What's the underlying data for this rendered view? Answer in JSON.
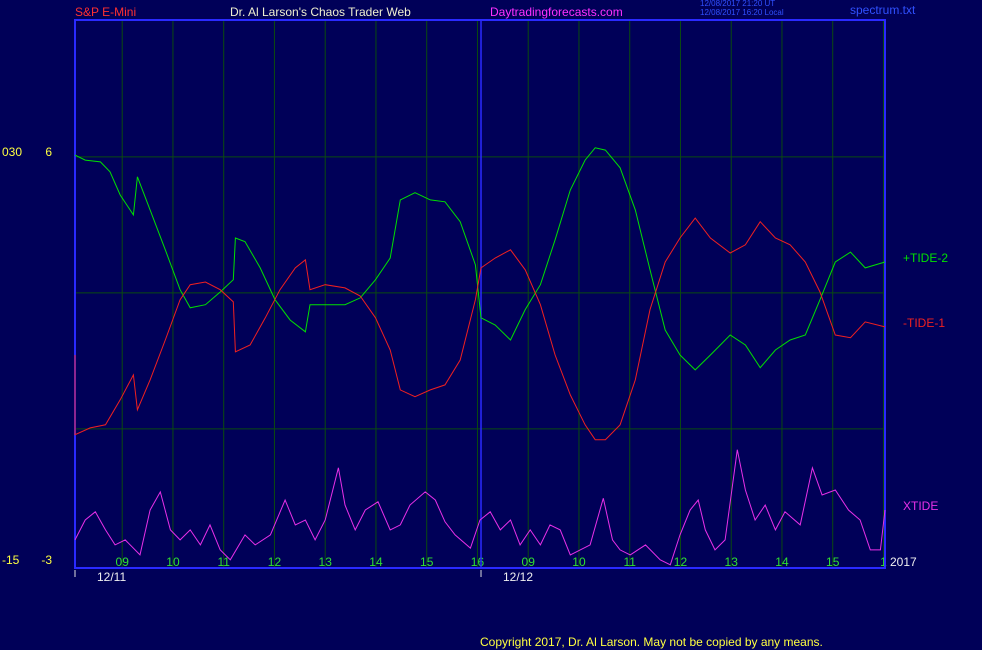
{
  "chart_data": {
    "type": "line",
    "instrument": "S&P E-Mini",
    "title": "Dr. Al Larson's Chaos Trader Web",
    "website": "Daytradingforecasts.com",
    "timestamps": [
      "12/08/2017 21:20 UT",
      "12/08/2017 16:20 Local"
    ],
    "file": "spectrum.txt",
    "year": "2017",
    "copyright": "Copyright 2017, Dr. Al Larson. May not be copied by any means.",
    "xlim": [
      -0.93,
      15.03
    ],
    "xticks": [
      {
        "value": 0,
        "label": "09"
      },
      {
        "value": 1,
        "label": "10"
      },
      {
        "value": 2,
        "label": "11"
      },
      {
        "value": 3,
        "label": "12"
      },
      {
        "value": 4,
        "label": "13"
      },
      {
        "value": 5,
        "label": "14"
      },
      {
        "value": 6,
        "label": "15"
      },
      {
        "value": 7,
        "label": "16"
      },
      {
        "value": 8,
        "label": "09"
      },
      {
        "value": 9,
        "label": "10"
      },
      {
        "value": 10,
        "label": "11"
      },
      {
        "value": 11,
        "label": "12"
      },
      {
        "value": 12,
        "label": "13"
      },
      {
        "value": 13,
        "label": "14"
      },
      {
        "value": 14,
        "label": "15"
      },
      {
        "value": 15,
        "label": "1"
      }
    ],
    "dates": [
      {
        "value": -0.93,
        "label": "12/11"
      },
      {
        "value": 7.07,
        "label": "12/12"
      }
    ],
    "ylim": [
      -3.07,
      9.02
    ],
    "yticks": [
      -3,
      6
    ],
    "y2lim": [
      -15.33,
      45.11
    ],
    "y2ticks": [
      -15,
      {
        "value": 30,
        "label": "030"
      }
    ],
    "grid_y": [
      0,
      3,
      6
    ],
    "grid": true,
    "series": [
      {
        "name": "+TIDE-2",
        "color": "#00e000",
        "x": [
          -0.93,
          -0.73,
          -0.43,
          -0.24,
          -0.04,
          0.22,
          0.3,
          0.55,
          0.85,
          1.14,
          1.34,
          1.64,
          1.93,
          2.19,
          2.23,
          2.42,
          2.72,
          3.01,
          3.31,
          3.61,
          3.7,
          4.0,
          4.39,
          4.69,
          4.99,
          5.28,
          5.48,
          5.77,
          6.07,
          6.36,
          6.66,
          6.96,
          7.07,
          7.35,
          7.65,
          7.94,
          8.24,
          8.53,
          8.83,
          9.12,
          9.32,
          9.52,
          9.81,
          10.11,
          10.4,
          10.7,
          10.99,
          11.29,
          11.59,
          11.98,
          12.28,
          12.57,
          12.87,
          13.16,
          13.46,
          13.75,
          14.05,
          14.35,
          14.64,
          15.03
        ],
        "values": [
          6.04,
          5.93,
          5.89,
          5.67,
          5.16,
          4.72,
          5.56,
          4.83,
          3.95,
          3.07,
          2.67,
          2.74,
          3.02,
          3.29,
          4.21,
          4.13,
          3.55,
          2.85,
          2.4,
          2.14,
          2.74,
          2.74,
          2.74,
          2.89,
          3.29,
          3.77,
          5.05,
          5.21,
          5.05,
          5.01,
          4.57,
          3.62,
          2.45,
          2.29,
          1.96,
          2.63,
          3.18,
          4.17,
          5.27,
          5.93,
          6.2,
          6.15,
          5.76,
          4.83,
          3.51,
          2.18,
          1.63,
          1.3,
          1.63,
          2.07,
          1.85,
          1.35,
          1.74,
          1.96,
          2.07,
          2.85,
          3.68,
          3.9,
          3.55,
          3.68
        ]
      },
      {
        "name": "-TIDE-1",
        "color": "#f02020",
        "x": [
          -0.93,
          -0.93,
          -0.63,
          -0.33,
          -0.04,
          0.22,
          0.3,
          0.55,
          0.85,
          1.14,
          1.34,
          1.64,
          1.93,
          2.19,
          2.23,
          2.52,
          2.82,
          3.11,
          3.41,
          3.61,
          3.7,
          4.0,
          4.39,
          4.69,
          4.99,
          5.28,
          5.48,
          5.77,
          6.07,
          6.36,
          6.66,
          6.96,
          7.07,
          7.35,
          7.65,
          7.94,
          8.24,
          8.53,
          8.83,
          9.12,
          9.32,
          9.52,
          9.81,
          10.11,
          10.4,
          10.7,
          10.99,
          11.29,
          11.59,
          11.98,
          12.28,
          12.57,
          12.87,
          13.16,
          13.46,
          13.75,
          14.05,
          14.35,
          14.64,
          15.03
        ],
        "values": [
          1.63,
          -0.13,
          0.02,
          0.09,
          0.64,
          1.19,
          0.42,
          1.08,
          1.96,
          2.85,
          3.18,
          3.24,
          3.07,
          2.8,
          1.7,
          1.85,
          2.45,
          3.07,
          3.55,
          3.73,
          3.07,
          3.18,
          3.11,
          2.93,
          2.45,
          1.74,
          0.86,
          0.71,
          0.86,
          0.97,
          1.52,
          2.85,
          3.55,
          3.77,
          3.95,
          3.51,
          2.74,
          1.63,
          0.75,
          0.09,
          -0.24,
          -0.24,
          0.09,
          1.08,
          2.63,
          3.68,
          4.21,
          4.65,
          4.21,
          3.88,
          4.06,
          4.57,
          4.21,
          4.06,
          3.68,
          3.02,
          2.07,
          2.01,
          2.36,
          2.25
        ]
      },
      {
        "name": "XTIDE",
        "color": "#e830e8",
        "x": [
          -0.93,
          -0.73,
          -0.53,
          -0.33,
          -0.14,
          0.06,
          0.35,
          0.55,
          0.75,
          0.95,
          1.14,
          1.34,
          1.54,
          1.73,
          1.93,
          2.13,
          2.42,
          2.62,
          2.92,
          3.21,
          3.41,
          3.61,
          3.8,
          4.0,
          4.26,
          4.39,
          4.59,
          4.79,
          5.04,
          5.28,
          5.48,
          5.67,
          5.97,
          6.17,
          6.36,
          6.56,
          6.86,
          7.05,
          7.25,
          7.45,
          7.65,
          7.84,
          8.04,
          8.24,
          8.43,
          8.63,
          8.83,
          9.22,
          9.48,
          9.66,
          9.81,
          10.01,
          10.31,
          10.6,
          10.8,
          10.99,
          11.19,
          11.35,
          11.49,
          11.68,
          11.88,
          12.12,
          12.28,
          12.47,
          12.67,
          12.87,
          13.06,
          13.36,
          13.6,
          13.79,
          14.05,
          14.31,
          14.54,
          14.74,
          14.94,
          15.03
        ],
        "values": [
          -2.45,
          -2.01,
          -1.83,
          -2.23,
          -2.56,
          -2.45,
          -2.78,
          -1.79,
          -1.39,
          -2.23,
          -2.45,
          -2.23,
          -2.56,
          -2.12,
          -2.67,
          -2.89,
          -2.34,
          -2.56,
          -2.34,
          -1.57,
          -2.12,
          -2.01,
          -2.45,
          -2.01,
          -0.86,
          -1.68,
          -2.23,
          -1.79,
          -1.61,
          -2.23,
          -2.12,
          -1.68,
          -1.39,
          -1.57,
          -2.05,
          -2.34,
          -2.63,
          -2.01,
          -1.83,
          -2.23,
          -2.01,
          -2.56,
          -2.23,
          -2.56,
          -2.12,
          -2.23,
          -2.78,
          -2.56,
          -1.53,
          -2.45,
          -2.67,
          -2.78,
          -2.56,
          -2.89,
          -3.0,
          -2.34,
          -1.79,
          -1.57,
          -2.23,
          -2.67,
          -2.45,
          -0.46,
          -1.35,
          -2.01,
          -1.68,
          -2.23,
          -1.83,
          -2.12,
          -0.86,
          -1.46,
          -1.35,
          -1.79,
          -2.01,
          -2.67,
          -2.67,
          -1.79
        ]
      }
    ]
  }
}
